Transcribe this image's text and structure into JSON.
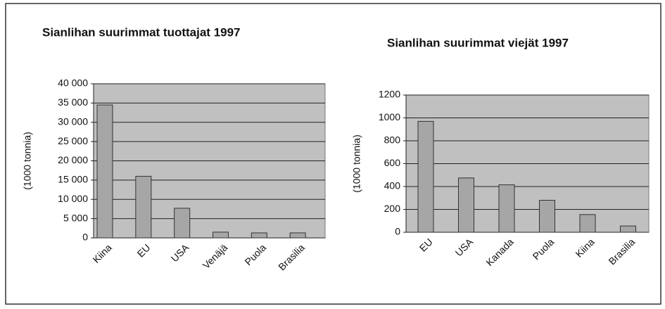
{
  "chart_data": [
    {
      "type": "bar",
      "title": "Sianlihan suurimmat tuottajat 1997",
      "y_label": "(1000 tonnia)",
      "categories": [
        "Kiina",
        "EU",
        "USA",
        "Venäjä",
        "Puola",
        "Brasilia"
      ],
      "values": [
        34500,
        16000,
        7700,
        1500,
        1300,
        1300
      ],
      "color": "#a6a6a6",
      "ylim": [
        0,
        40000
      ],
      "yticks": [
        0,
        {
          "value": 5000,
          "label": "5 000"
        },
        {
          "value": 10000,
          "label": "10 000"
        },
        {
          "value": 15000,
          "label": "15 000"
        },
        {
          "value": 20000,
          "label": "20 000"
        },
        {
          "value": 25000,
          "label": "25 000"
        },
        {
          "value": 30000,
          "label": "30 000"
        },
        {
          "value": 35000,
          "label": "35 000"
        },
        {
          "value": 40000,
          "label": "40 000"
        }
      ],
      "grid": true
    },
    {
      "type": "bar",
      "title": "Sianlihan suurimmat viejät 1997",
      "y_label": "(1000 tonnia)",
      "categories": [
        "EU",
        "USA",
        "Kanada",
        "Puola",
        "Kiina",
        "Brasilia"
      ],
      "values": [
        970,
        475,
        415,
        280,
        155,
        55
      ],
      "color": "#a6a6a6",
      "ylim": [
        0,
        1200
      ],
      "yticks": [
        0,
        200,
        400,
        600,
        800,
        1000,
        1200
      ],
      "grid": true
    }
  ]
}
